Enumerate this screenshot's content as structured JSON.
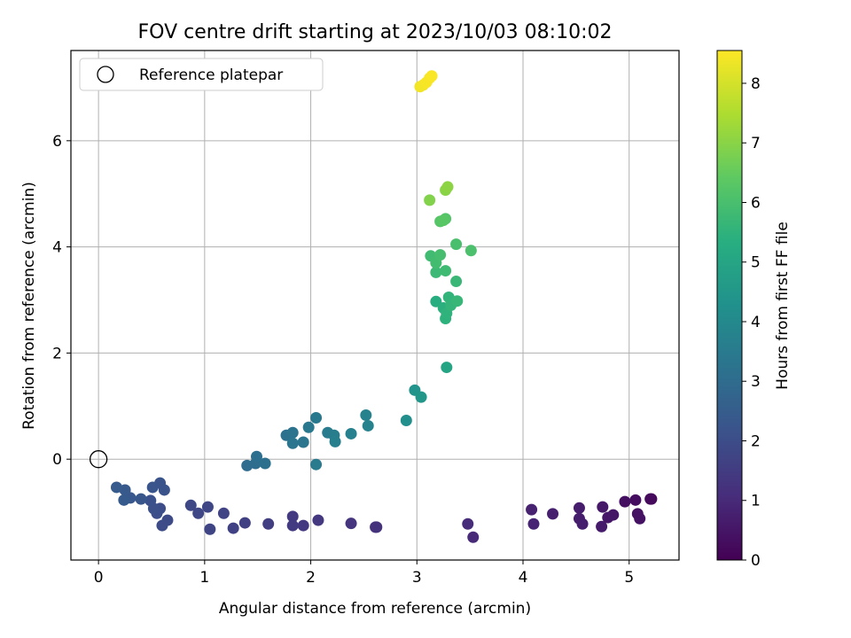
{
  "chart_data": {
    "type": "scatter",
    "title": "FOV centre drift starting at 2023/10/03 08:10:02",
    "xlabel": "Angular distance from reference (arcmin)",
    "ylabel": "Rotation from reference (arcmin)",
    "xlim": [
      -0.26,
      5.47
    ],
    "ylim": [
      -1.9,
      7.7
    ],
    "xticks": [
      0,
      1,
      2,
      3,
      4,
      5
    ],
    "yticks": [
      0,
      2,
      4,
      6
    ],
    "grid": true,
    "legend": {
      "placement": "top-left",
      "entries": [
        "Reference platepar"
      ]
    },
    "reference_point": {
      "x": 0,
      "y": 0
    },
    "colorbar": {
      "label": "Hours from first FF file",
      "range": [
        0,
        8.55
      ],
      "ticks": [
        0,
        1,
        2,
        3,
        4,
        5,
        6,
        7,
        8
      ],
      "colormap": "viridis"
    },
    "points": [
      {
        "x": 5.21,
        "y": -0.75,
        "t": 0.2
      },
      {
        "x": 5.2,
        "y": -0.75,
        "t": 0.22
      },
      {
        "x": 5.06,
        "y": -0.77,
        "t": 0.3
      },
      {
        "x": 4.96,
        "y": -0.8,
        "t": 0.35
      },
      {
        "x": 5.08,
        "y": -1.03,
        "t": 0.4
      },
      {
        "x": 5.1,
        "y": -1.12,
        "t": 0.42
      },
      {
        "x": 4.85,
        "y": -1.05,
        "t": 0.48
      },
      {
        "x": 4.8,
        "y": -1.1,
        "t": 0.52
      },
      {
        "x": 4.75,
        "y": -0.9,
        "t": 0.55
      },
      {
        "x": 4.74,
        "y": -1.27,
        "t": 0.6
      },
      {
        "x": 4.53,
        "y": -0.92,
        "t": 0.65
      },
      {
        "x": 4.53,
        "y": -1.12,
        "t": 0.68
      },
      {
        "x": 4.56,
        "y": -1.22,
        "t": 0.7
      },
      {
        "x": 4.28,
        "y": -1.03,
        "t": 0.75
      },
      {
        "x": 4.08,
        "y": -0.95,
        "t": 0.8
      },
      {
        "x": 4.1,
        "y": -1.22,
        "t": 0.85
      },
      {
        "x": 3.53,
        "y": -1.47,
        "t": 1.0
      },
      {
        "x": 3.48,
        "y": -1.22,
        "t": 1.05
      },
      {
        "x": 2.62,
        "y": -1.28,
        "t": 1.2
      },
      {
        "x": 2.61,
        "y": -1.28,
        "t": 1.22
      },
      {
        "x": 2.38,
        "y": -1.21,
        "t": 1.3
      },
      {
        "x": 2.07,
        "y": -1.15,
        "t": 1.38
      },
      {
        "x": 1.93,
        "y": -1.25,
        "t": 1.42
      },
      {
        "x": 1.83,
        "y": -1.08,
        "t": 1.45
      },
      {
        "x": 1.83,
        "y": -1.25,
        "t": 1.48
      },
      {
        "x": 1.6,
        "y": -1.22,
        "t": 1.55
      },
      {
        "x": 1.38,
        "y": -1.2,
        "t": 1.62
      },
      {
        "x": 1.27,
        "y": -1.3,
        "t": 1.66
      },
      {
        "x": 1.18,
        "y": -1.02,
        "t": 1.7
      },
      {
        "x": 1.05,
        "y": -1.32,
        "t": 1.74
      },
      {
        "x": 1.03,
        "y": -0.9,
        "t": 1.78
      },
      {
        "x": 0.94,
        "y": -1.02,
        "t": 1.82
      },
      {
        "x": 0.87,
        "y": -0.87,
        "t": 1.86
      },
      {
        "x": 0.65,
        "y": -1.15,
        "t": 1.92
      },
      {
        "x": 0.6,
        "y": -1.25,
        "t": 1.96
      },
      {
        "x": 0.58,
        "y": -0.93,
        "t": 2.0
      },
      {
        "x": 0.55,
        "y": -1.02,
        "t": 2.04
      },
      {
        "x": 0.52,
        "y": -0.93,
        "t": 2.08
      },
      {
        "x": 0.49,
        "y": -0.78,
        "t": 2.12
      },
      {
        "x": 0.62,
        "y": -0.58,
        "t": 2.16
      },
      {
        "x": 0.58,
        "y": -0.45,
        "t": 2.2
      },
      {
        "x": 0.51,
        "y": -0.53,
        "t": 2.24
      },
      {
        "x": 0.4,
        "y": -0.75,
        "t": 2.28
      },
      {
        "x": 0.3,
        "y": -0.73,
        "t": 2.32
      },
      {
        "x": 0.25,
        "y": -0.58,
        "t": 2.36
      },
      {
        "x": 0.24,
        "y": -0.77,
        "t": 2.4
      },
      {
        "x": 0.17,
        "y": -0.53,
        "t": 2.44
      },
      {
        "x": 1.4,
        "y": -0.12,
        "t": 3.0
      },
      {
        "x": 1.48,
        "y": -0.08,
        "t": 3.05
      },
      {
        "x": 1.49,
        "y": 0.05,
        "t": 3.1
      },
      {
        "x": 1.57,
        "y": -0.08,
        "t": 3.15
      },
      {
        "x": 1.77,
        "y": 0.45,
        "t": 3.2
      },
      {
        "x": 1.83,
        "y": 0.5,
        "t": 3.25
      },
      {
        "x": 1.83,
        "y": 0.3,
        "t": 3.3
      },
      {
        "x": 1.93,
        "y": 0.32,
        "t": 3.35
      },
      {
        "x": 1.98,
        "y": 0.6,
        "t": 3.4
      },
      {
        "x": 2.05,
        "y": 0.78,
        "t": 3.45
      },
      {
        "x": 2.05,
        "y": -0.1,
        "t": 3.5
      },
      {
        "x": 2.16,
        "y": 0.5,
        "t": 3.55
      },
      {
        "x": 2.22,
        "y": 0.45,
        "t": 3.6
      },
      {
        "x": 2.23,
        "y": 0.33,
        "t": 3.65
      },
      {
        "x": 2.38,
        "y": 0.48,
        "t": 3.7
      },
      {
        "x": 2.52,
        "y": 0.83,
        "t": 3.75
      },
      {
        "x": 2.54,
        "y": 0.63,
        "t": 3.8
      },
      {
        "x": 2.9,
        "y": 0.73,
        "t": 4.2
      },
      {
        "x": 2.98,
        "y": 1.3,
        "t": 4.4
      },
      {
        "x": 3.04,
        "y": 1.17,
        "t": 4.5
      },
      {
        "x": 3.28,
        "y": 1.73,
        "t": 5.0
      },
      {
        "x": 3.18,
        "y": 2.97,
        "t": 5.3
      },
      {
        "x": 3.25,
        "y": 2.85,
        "t": 5.4
      },
      {
        "x": 3.27,
        "y": 2.65,
        "t": 5.45
      },
      {
        "x": 3.28,
        "y": 2.75,
        "t": 5.5
      },
      {
        "x": 3.3,
        "y": 3.05,
        "t": 5.55
      },
      {
        "x": 3.32,
        "y": 2.9,
        "t": 5.6
      },
      {
        "x": 3.38,
        "y": 2.98,
        "t": 5.65
      },
      {
        "x": 3.37,
        "y": 3.35,
        "t": 5.7
      },
      {
        "x": 3.18,
        "y": 3.52,
        "t": 5.75
      },
      {
        "x": 3.27,
        "y": 3.55,
        "t": 5.8
      },
      {
        "x": 3.13,
        "y": 3.83,
        "t": 5.85
      },
      {
        "x": 3.18,
        "y": 3.7,
        "t": 5.9
      },
      {
        "x": 3.22,
        "y": 3.85,
        "t": 5.95
      },
      {
        "x": 3.37,
        "y": 4.05,
        "t": 6.0
      },
      {
        "x": 3.51,
        "y": 3.93,
        "t": 6.05
      },
      {
        "x": 3.27,
        "y": 4.53,
        "t": 6.2
      },
      {
        "x": 3.22,
        "y": 4.48,
        "t": 6.25
      },
      {
        "x": 3.25,
        "y": 4.5,
        "t": 6.3
      },
      {
        "x": 3.12,
        "y": 4.88,
        "t": 6.9
      },
      {
        "x": 3.27,
        "y": 5.07,
        "t": 7.0
      },
      {
        "x": 3.29,
        "y": 5.13,
        "t": 7.05
      },
      {
        "x": 3.03,
        "y": 7.02,
        "t": 8.4
      },
      {
        "x": 3.06,
        "y": 7.05,
        "t": 8.42
      },
      {
        "x": 3.09,
        "y": 7.1,
        "t": 8.45
      },
      {
        "x": 3.12,
        "y": 7.18,
        "t": 8.48
      },
      {
        "x": 3.14,
        "y": 7.22,
        "t": 8.5
      }
    ]
  }
}
